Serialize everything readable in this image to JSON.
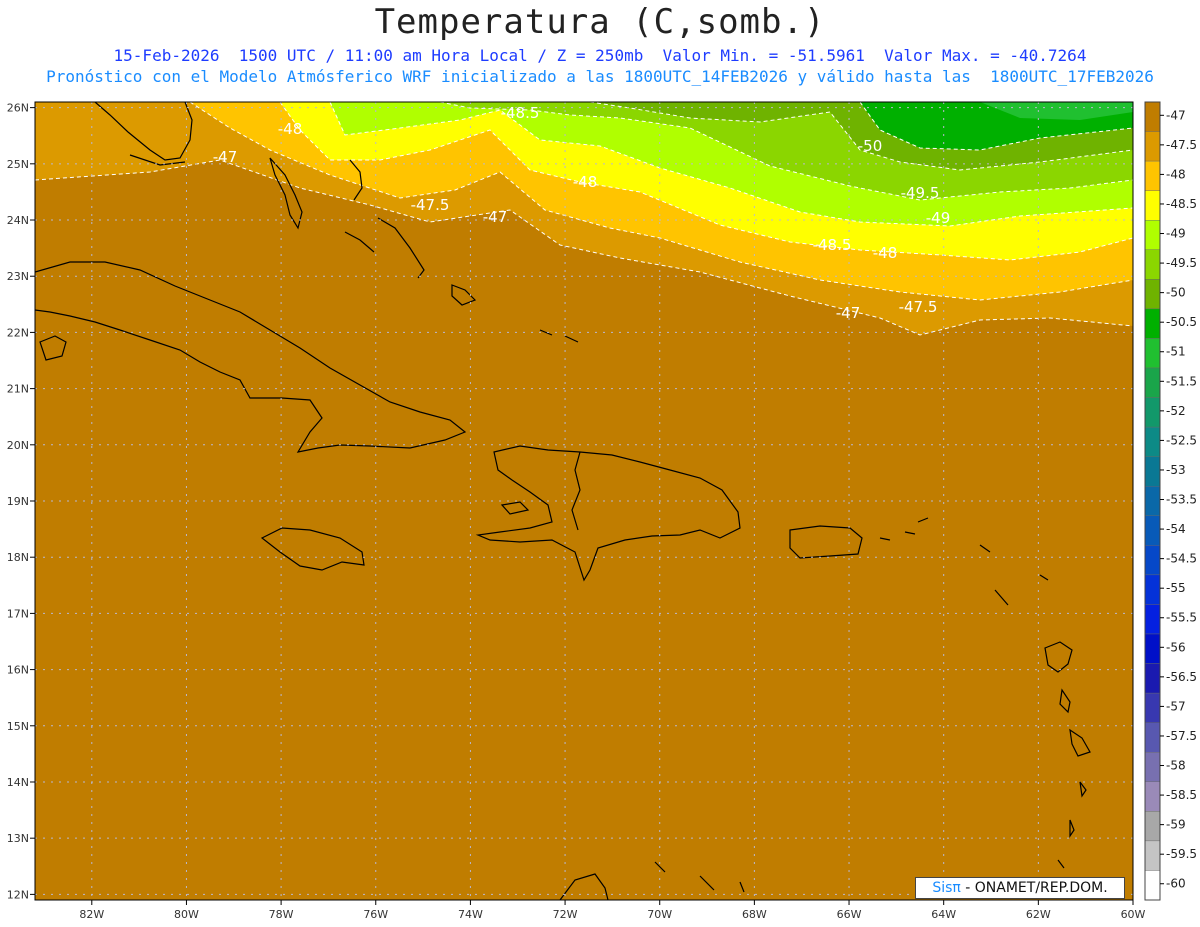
{
  "header": {
    "title": "Temperatura (C,somb.)",
    "line1": "15-Feb-2026  1500 UTC / 11:00 am Hora Local / Z = 250mb  Valor Min. = -51.5961  Valor Max. = -40.7264",
    "line2": "Pronóstico con el Modelo Atmósferico WRF inicializado a las 1800UTC_14FEB2026 y válido hasta las  1800UTC_17FEB2026"
  },
  "map": {
    "lon_range": [
      -83.2,
      -60.0
    ],
    "lat_range": [
      11.9,
      26.1
    ],
    "lat_ticks": [
      "26N",
      "25N",
      "24N",
      "23N",
      "22N",
      "21N",
      "20N",
      "19N",
      "18N",
      "17N",
      "16N",
      "15N",
      "14N",
      "13N",
      "12N"
    ],
    "lon_ticks": [
      "82W",
      "80W",
      "78W",
      "76W",
      "74W",
      "72W",
      "70W",
      "68W",
      "66W",
      "64W",
      "62W",
      "60W"
    ],
    "contour_labels": [
      "-48.5",
      "-48",
      "-47",
      "-50",
      "-49.5",
      "-48",
      "-47.5",
      "-47",
      "-49",
      "-48.5",
      "-48",
      "-47",
      "-47.5"
    ]
  },
  "legend": {
    "labels": [
      "-47",
      "-47.5",
      "-48",
      "-48.5",
      "-49",
      "-49.5",
      "-50",
      "-50.5",
      "-51",
      "-51.5",
      "-52",
      "-52.5",
      "-53",
      "-53.5",
      "-54",
      "-54.5",
      "-55",
      "-55.5",
      "-56",
      "-56.5",
      "-57",
      "-57.5",
      "-58",
      "-58.5",
      "-59",
      "-59.5",
      "-60"
    ],
    "colors": [
      "#c07d00",
      "#dc9a00",
      "#ffc400",
      "#ffff00",
      "#b0ff00",
      "#8bd600",
      "#6fb300",
      "#00b000",
      "#20c030",
      "#1aa54a",
      "#12986a",
      "#0d8a86",
      "#0a7894",
      "#0a68a8",
      "#085ab8",
      "#0648c8",
      "#0432d8",
      "#0420e0",
      "#0010c8",
      "#1a1ab0",
      "#3838b0",
      "#5858b0",
      "#7870b0",
      "#9a8ab8",
      "#a8a8a8",
      "#c4c4c4",
      "#ffffff"
    ]
  },
  "credit": {
    "sis": "Sisπ",
    "rest": " - ONAMET/REP.DOM."
  }
}
